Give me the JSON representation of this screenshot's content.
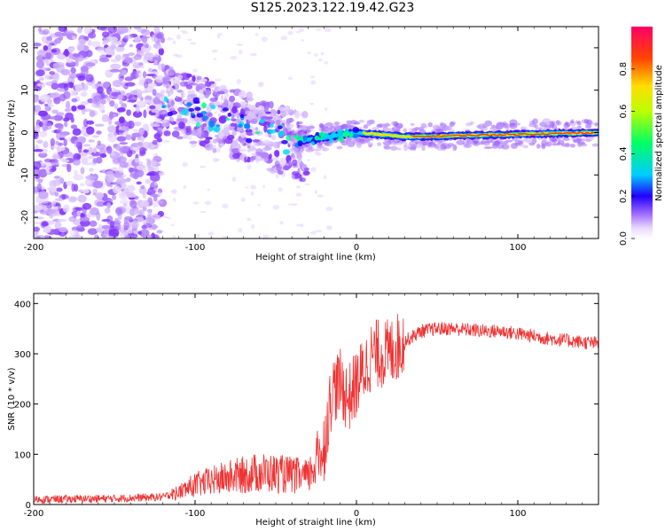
{
  "title": "S125.2023.122.19.42.G23",
  "chart_data": [
    {
      "type": "heatmap",
      "xlabel": "Height of straight line (km)",
      "ylabel": "Frequency (Hz)",
      "xlim": [
        -200,
        150
      ],
      "ylim": [
        -25,
        25
      ],
      "x_ticks": [
        -200,
        -100,
        0,
        100
      ],
      "y_ticks": [
        -20,
        -10,
        0,
        10,
        20
      ],
      "colorbar": {
        "label": "Normalized spectral amplitude",
        "range": [
          0,
          1
        ],
        "ticks": [
          "0.0",
          "0.2",
          "0.4",
          "0.6",
          "0.8"
        ],
        "colormap": "rainbow-white-to-magenta"
      },
      "description_features": {
        "noise_region_x": [
          -200,
          -120
        ],
        "scatter_region_x": [
          -120,
          -30
        ],
        "signal_line": [
          {
            "x": -35,
            "y": -2
          },
          {
            "x": 0,
            "y": 0
          },
          {
            "x": 30,
            "y": -1
          },
          {
            "x": 150,
            "y": 0
          }
        ]
      }
    },
    {
      "type": "line",
      "xlabel": "Height of straight line (km)",
      "ylabel": "SNR (10 * v/v)",
      "xlim": [
        -200,
        150
      ],
      "ylim": [
        0,
        420
      ],
      "x_ticks": [
        -200,
        -100,
        0,
        100
      ],
      "y_ticks": [
        0,
        100,
        200,
        300,
        400
      ],
      "color": "#ee3333",
      "series": [
        {
          "x": [
            -200,
            -150,
            -120,
            -110,
            -100,
            -80,
            -60,
            -40,
            -30,
            -20,
            -15,
            -10,
            -5,
            0,
            10,
            20,
            30,
            40,
            50,
            60,
            80,
            90,
            100,
            120,
            150
          ],
          "values": [
            10,
            12,
            15,
            25,
            40,
            55,
            65,
            60,
            55,
            120,
            230,
            240,
            210,
            240,
            300,
            300,
            325,
            345,
            350,
            350,
            345,
            345,
            340,
            330,
            320
          ]
        }
      ]
    }
  ]
}
